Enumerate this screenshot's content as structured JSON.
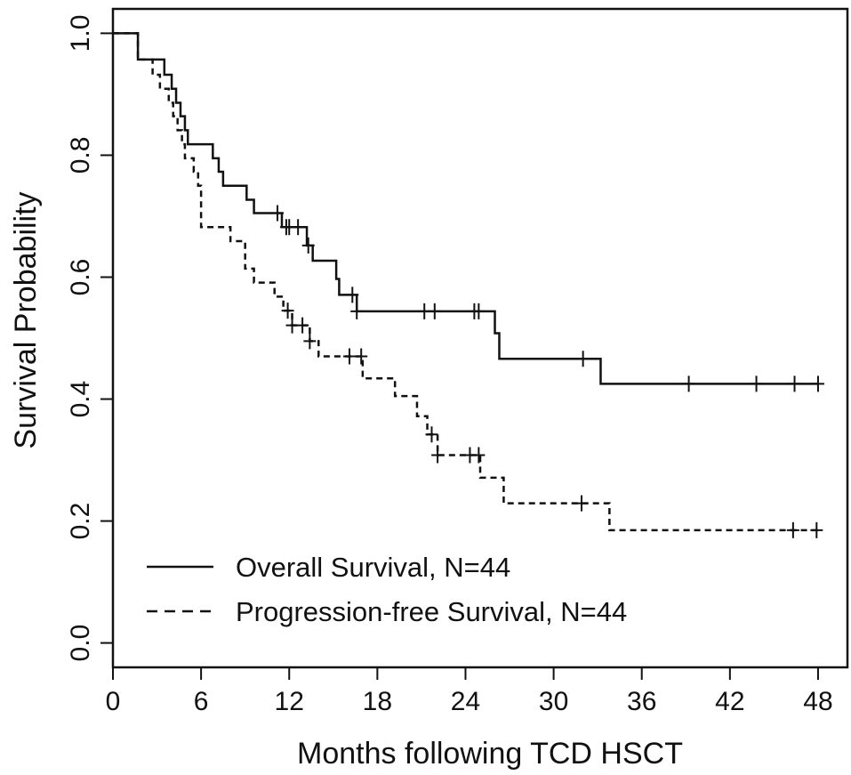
{
  "chart_data": {
    "type": "line",
    "title": "",
    "xlabel": "Months following TCD HSCT",
    "ylabel": "Survival Probability",
    "xlim": [
      0,
      50
    ],
    "ylim": [
      -0.04,
      1.04
    ],
    "x_ticks": [
      "0",
      "6",
      "12",
      "18",
      "24",
      "30",
      "36",
      "42",
      "48"
    ],
    "y_ticks": [
      "0.0",
      "0.2",
      "0.4",
      "0.6",
      "0.8",
      "1.0"
    ],
    "legend_position": "bottom-left",
    "grid": false,
    "series": [
      {
        "name": "Overall Survival, N=44",
        "line_style": "solid",
        "color": "#111111",
        "steps": [
          [
            0,
            1.0
          ],
          [
            1.7,
            0.957
          ],
          [
            3.5,
            0.932
          ],
          [
            4.0,
            0.909
          ],
          [
            4.3,
            0.886
          ],
          [
            4.6,
            0.864
          ],
          [
            4.9,
            0.841
          ],
          [
            5.1,
            0.818
          ],
          [
            6.8,
            0.795
          ],
          [
            7.2,
            0.773
          ],
          [
            7.5,
            0.75
          ],
          [
            9.1,
            0.727
          ],
          [
            9.6,
            0.705
          ],
          [
            11.5,
            0.682
          ],
          [
            13.2,
            0.652
          ],
          [
            13.6,
            0.627
          ],
          [
            15.2,
            0.597
          ],
          [
            15.4,
            0.571
          ],
          [
            16.6,
            0.544
          ],
          [
            26.0,
            0.508
          ],
          [
            26.3,
            0.466
          ],
          [
            33.2,
            0.425
          ],
          [
            48.0,
            0.425
          ]
        ],
        "censor_x": [
          11.2,
          11.8,
          12.0,
          12.6,
          13.3,
          16.3,
          16.6,
          21.2,
          21.9,
          24.6,
          24.9,
          32.0,
          39.2,
          43.8,
          46.4,
          48.0
        ]
      },
      {
        "name": "Progression-free Survival, N=44",
        "line_style": "dashed",
        "color": "#111111",
        "steps": [
          [
            0,
            1.0
          ],
          [
            1.7,
            0.957
          ],
          [
            2.7,
            0.932
          ],
          [
            3.2,
            0.909
          ],
          [
            3.8,
            0.886
          ],
          [
            4.1,
            0.864
          ],
          [
            4.4,
            0.841
          ],
          [
            4.7,
            0.818
          ],
          [
            4.9,
            0.795
          ],
          [
            5.5,
            0.773
          ],
          [
            5.8,
            0.75
          ],
          [
            6.0,
            0.682
          ],
          [
            8.0,
            0.659
          ],
          [
            9.0,
            0.614
          ],
          [
            9.6,
            0.591
          ],
          [
            11.0,
            0.568
          ],
          [
            11.6,
            0.545
          ],
          [
            12.2,
            0.521
          ],
          [
            13.4,
            0.495
          ],
          [
            14.0,
            0.47
          ],
          [
            17.0,
            0.434
          ],
          [
            19.2,
            0.405
          ],
          [
            20.7,
            0.372
          ],
          [
            21.4,
            0.342
          ],
          [
            22.1,
            0.308
          ],
          [
            25.0,
            0.271
          ],
          [
            26.6,
            0.229
          ],
          [
            33.8,
            0.185
          ],
          [
            48.0,
            0.185
          ]
        ],
        "censor_x": [
          11.9,
          12.2,
          12.9,
          13.4,
          16.1,
          16.9,
          21.7,
          22.1,
          24.3,
          24.9,
          31.9,
          46.3,
          47.9
        ]
      }
    ]
  }
}
